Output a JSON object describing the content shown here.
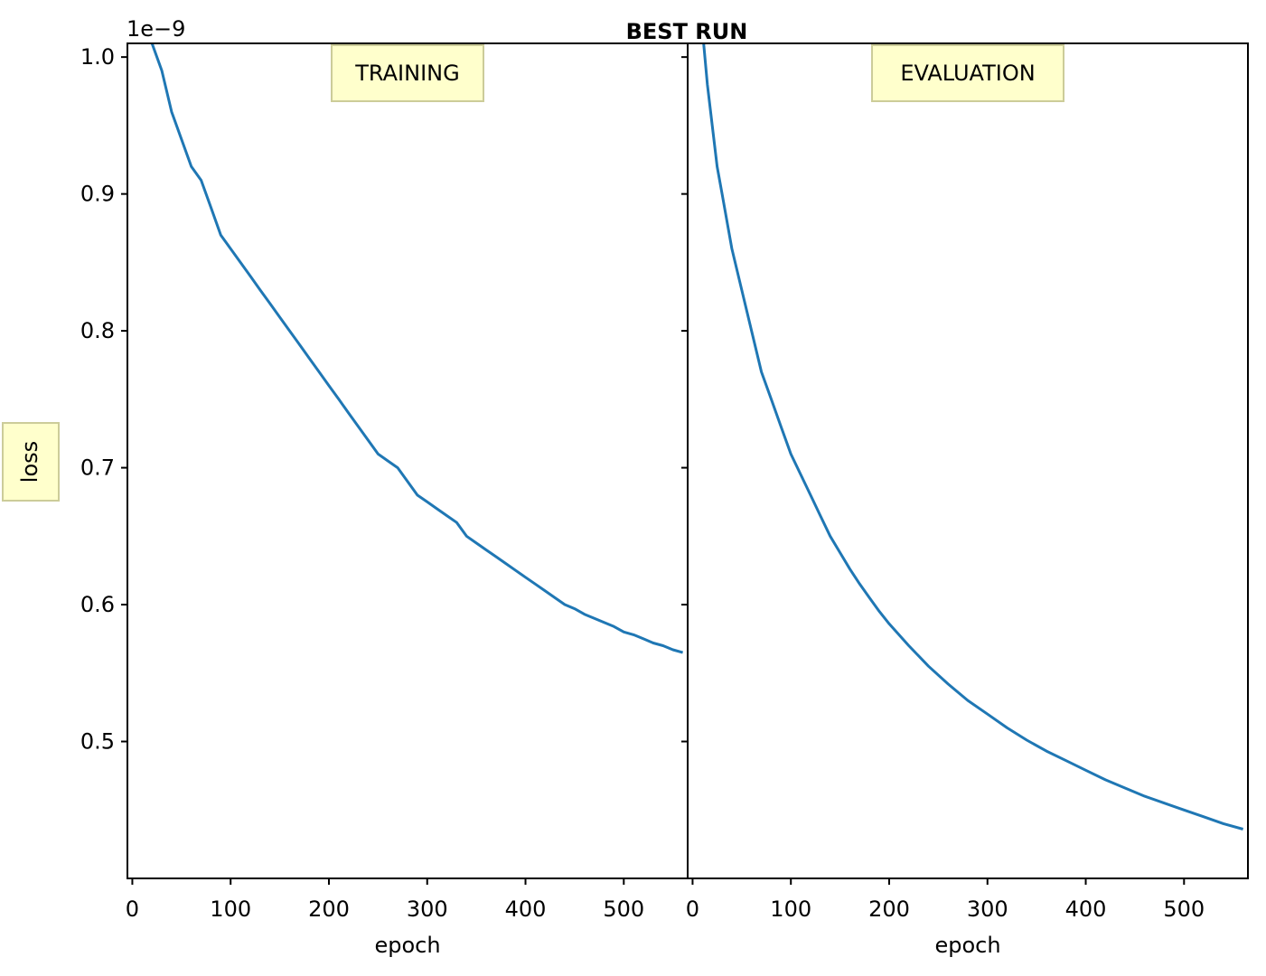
{
  "title": "BEST RUN",
  "ylabel": "loss",
  "y_offset_text": "1e−9",
  "colors": {
    "series": "#1f77b4",
    "label_box_fill": "#ffffcc",
    "label_box_edge": "#cccc99"
  },
  "chart_data": [
    {
      "type": "line",
      "panel_label": "TRAINING",
      "xlabel": "epoch",
      "ylabel": "loss",
      "y_scale_note": "values x 1e-9",
      "xlim": [
        -5,
        565
      ],
      "ylim": [
        0.4,
        1.01
      ],
      "x_ticks": [
        0,
        100,
        200,
        300,
        400,
        500
      ],
      "y_ticks": [
        0.5,
        0.6,
        0.7,
        0.8,
        0.9,
        1.0
      ],
      "y_tick_labels": [
        "0.5",
        "0.6",
        "0.7",
        "0.8",
        "0.9",
        "1.0"
      ],
      "grid": false,
      "series": [
        {
          "x": [
            20,
            30,
            40,
            50,
            60,
            70,
            80,
            90,
            100,
            110,
            120,
            130,
            140,
            150,
            160,
            170,
            180,
            190,
            200,
            210,
            220,
            230,
            240,
            250,
            260,
            270,
            280,
            290,
            300,
            310,
            320,
            330,
            340,
            350,
            360,
            370,
            380,
            390,
            400,
            410,
            420,
            430,
            440,
            450,
            460,
            470,
            480,
            490,
            500,
            510,
            520,
            530,
            540,
            550,
            560
          ],
          "values": [
            1.01,
            0.99,
            0.96,
            0.94,
            0.92,
            0.91,
            0.89,
            0.87,
            0.86,
            0.85,
            0.84,
            0.83,
            0.82,
            0.81,
            0.8,
            0.79,
            0.78,
            0.77,
            0.76,
            0.75,
            0.74,
            0.73,
            0.72,
            0.71,
            0.705,
            0.7,
            0.69,
            0.68,
            0.675,
            0.67,
            0.665,
            0.66,
            0.65,
            0.645,
            0.64,
            0.635,
            0.63,
            0.625,
            0.62,
            0.615,
            0.61,
            0.605,
            0.6,
            0.597,
            0.593,
            0.59,
            0.587,
            0.584,
            0.58,
            0.578,
            0.575,
            0.572,
            0.57,
            0.567,
            0.565
          ]
        }
      ]
    },
    {
      "type": "line",
      "panel_label": "EVALUATION",
      "xlabel": "epoch",
      "xlim": [
        -5,
        565
      ],
      "ylim": [
        0.4,
        1.01
      ],
      "x_ticks": [
        0,
        100,
        200,
        300,
        400,
        500
      ],
      "grid": false,
      "series": [
        {
          "x": [
            10,
            15,
            20,
            25,
            30,
            40,
            50,
            60,
            70,
            80,
            90,
            100,
            110,
            120,
            130,
            140,
            150,
            160,
            170,
            180,
            190,
            200,
            220,
            240,
            260,
            280,
            300,
            320,
            340,
            360,
            380,
            400,
            420,
            440,
            460,
            480,
            500,
            520,
            540,
            560
          ],
          "values": [
            1.02,
            0.98,
            0.95,
            0.92,
            0.9,
            0.86,
            0.83,
            0.8,
            0.77,
            0.75,
            0.73,
            0.71,
            0.695,
            0.68,
            0.665,
            0.65,
            0.638,
            0.626,
            0.615,
            0.605,
            0.595,
            0.586,
            0.57,
            0.555,
            0.542,
            0.53,
            0.52,
            0.51,
            0.501,
            0.493,
            0.486,
            0.479,
            0.472,
            0.466,
            0.46,
            0.455,
            0.45,
            0.445,
            0.44,
            0.436
          ]
        }
      ]
    }
  ]
}
